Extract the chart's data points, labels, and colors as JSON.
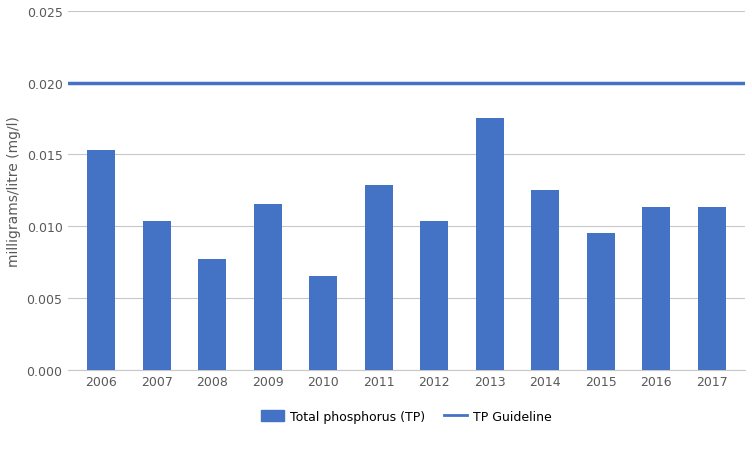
{
  "years": [
    "2006",
    "2007",
    "2008",
    "2009",
    "2010",
    "2011",
    "2012",
    "2013",
    "2014",
    "2015",
    "2016",
    "2017"
  ],
  "values": [
    0.0153,
    0.01035,
    0.0077,
    0.01155,
    0.00655,
    0.01285,
    0.01035,
    0.01755,
    0.01255,
    0.00955,
    0.01135,
    0.01135
  ],
  "bar_color": "#4472C4",
  "guideline_value": 0.02,
  "guideline_color": "#4472C4",
  "ylabel": "milligrams/litre (mg/l)",
  "ylim": [
    0,
    0.025
  ],
  "yticks": [
    0.0,
    0.005,
    0.01,
    0.015,
    0.02,
    0.025
  ],
  "legend_bar_label": "Total phosphorus (TP)",
  "legend_line_label": "TP Guideline",
  "background_color": "#ffffff",
  "grid_color": "#c8c8c8",
  "tick_label_fontsize": 9,
  "axis_label_fontsize": 10,
  "legend_fontsize": 9,
  "bar_width": 0.5
}
